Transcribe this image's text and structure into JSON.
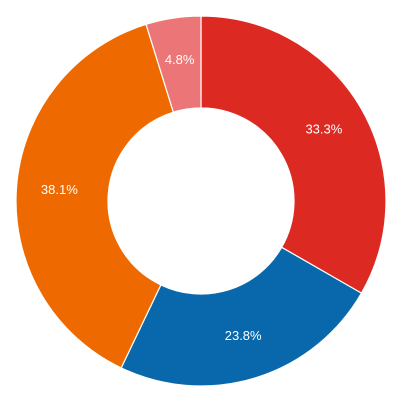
{
  "chart_data": {
    "type": "pie",
    "variant": "donut",
    "title": "",
    "slices": [
      {
        "label": "33.3%",
        "value": 33.3,
        "color": "#dc2a23"
      },
      {
        "label": "23.8%",
        "value": 23.8,
        "color": "#0868ab"
      },
      {
        "label": "38.1%",
        "value": 38.1,
        "color": "#ee6a00"
      },
      {
        "label": "4.8%",
        "value": 4.8,
        "color": "#ec7577"
      }
    ],
    "start_angle": "top",
    "direction": "clockwise",
    "legend": "none"
  }
}
